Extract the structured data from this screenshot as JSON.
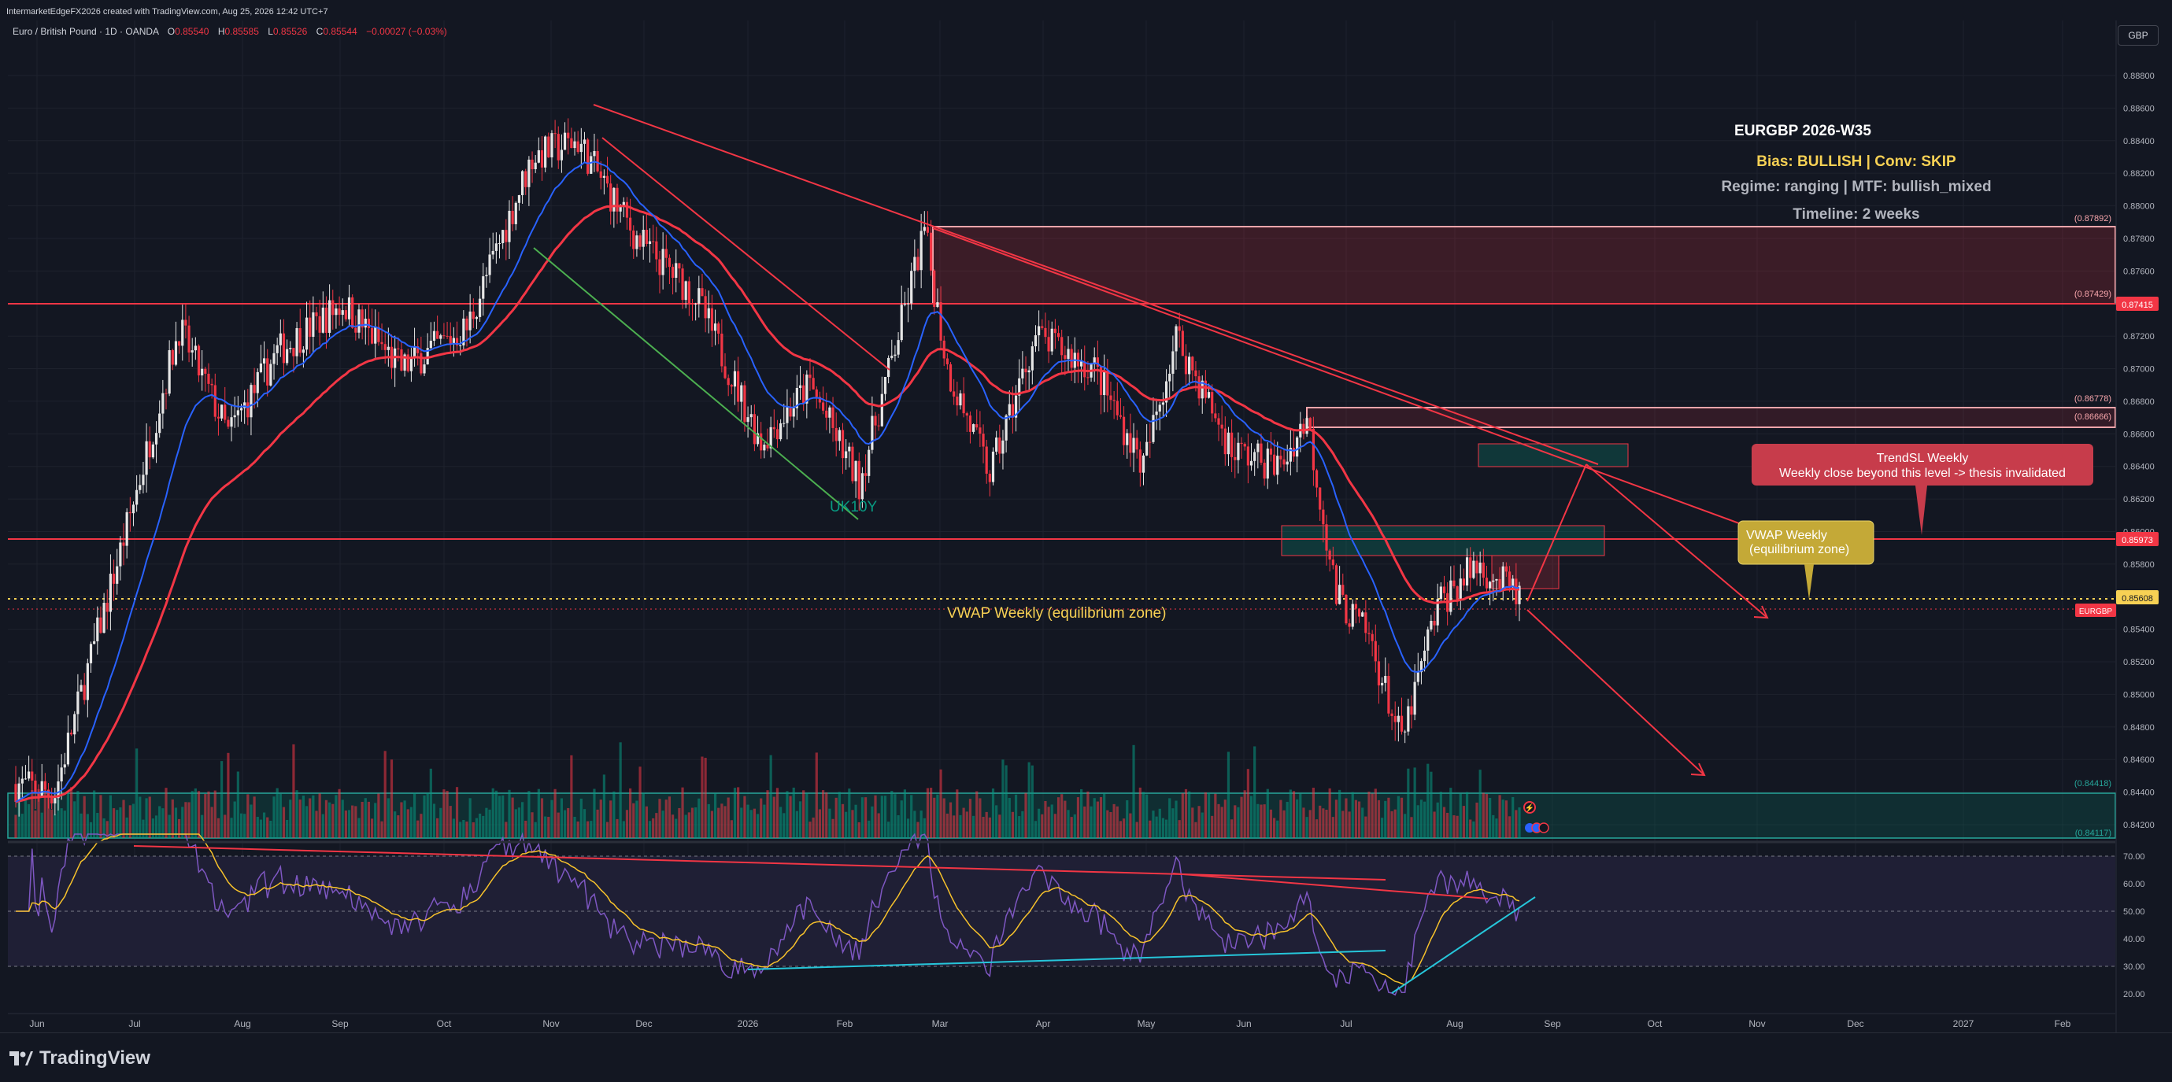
{
  "header": {
    "credit": "IntermarketEdgeFX2026 created with TradingView.com, Aug 25, 2026 12:42 UTC+7",
    "symbol": "Euro / British Pound · 1D · OANDA",
    "ohlc": {
      "o_label": "O",
      "o": "0.85540",
      "h_label": "H",
      "h": "0.85585",
      "l_label": "L",
      "l": "0.85526",
      "c_label": "C",
      "c": "0.85544",
      "change": "−0.00027 (−0.03%)"
    },
    "currency_button": "GBP"
  },
  "info_box": {
    "title": "EURGBP 2026-W35",
    "bias": "Bias: BULLISH | Conv: SKIP",
    "regime": "Regime: ranging | MTF: bullish_mixed",
    "timeline": "Timeline: 2 weeks"
  },
  "annotations": {
    "trendsl_title": "TrendSL Weekly",
    "trendsl_text": "Weekly close beyond this level -> thesis invalidated",
    "vwap_box_line1": "VWAP Weekly",
    "vwap_box_line2": "(equilibrium zone)",
    "vwap_line_label": "VWAP Weekly (equilibrium zone)",
    "uk10y_label": "UK10Y",
    "zone_labels": [
      "(0.87892)",
      "(0.87429)",
      "(0.86778)",
      "(0.86666)",
      "(0.84418)",
      "(0.84117)"
    ]
  },
  "price_axis": {
    "ticks": [
      "0.88800",
      "0.88600",
      "0.88400",
      "0.88200",
      "0.88000",
      "0.87800",
      "0.87600",
      "0.87400",
      "0.87200",
      "0.87000",
      "0.86800",
      "0.86600",
      "0.86400",
      "0.86200",
      "0.86000",
      "0.85800",
      "0.85600",
      "0.85400",
      "0.85200",
      "0.85000",
      "0.84800",
      "0.84600",
      "0.84400",
      "0.84200"
    ],
    "tick_values": [
      0.888,
      0.886,
      0.884,
      0.882,
      0.88,
      0.878,
      0.876,
      0.874,
      0.872,
      0.87,
      0.868,
      0.866,
      0.864,
      0.862,
      0.86,
      0.858,
      0.856,
      0.854,
      0.852,
      0.85,
      0.848,
      0.846,
      0.844,
      0.842
    ],
    "badge_upper": "0.87415",
    "badge_mid": "0.85973",
    "badge_last": "0.85608",
    "badge_symbol": "EURGBP"
  },
  "rsi_axis": {
    "ticks": [
      "70.00",
      "60.00",
      "50.00",
      "40.00",
      "30.00",
      "20.00"
    ],
    "tick_values": [
      70,
      60,
      50,
      40,
      30,
      20
    ]
  },
  "time_axis": {
    "labels": [
      "Jun",
      "Jul",
      "Aug",
      "Sep",
      "Oct",
      "Nov",
      "Dec",
      "2026",
      "Feb",
      "Mar",
      "Apr",
      "May",
      "Jun",
      "Jul",
      "Aug",
      "Sep",
      "Oct",
      "Nov",
      "Dec",
      "2027",
      "Feb"
    ]
  },
  "colors": {
    "background": "#131722",
    "bull": "#e6e6e6",
    "bear": "#f23645",
    "ema_fast": "#2962ff",
    "ema_slow": "#f23645",
    "vwap": "#f7d154",
    "rsi": "#7e57c2",
    "rsi_ma": "#f7c22b",
    "zone_red": "#f23645",
    "zone_green": "#089981"
  },
  "footer": {
    "brand": "TradingView"
  }
}
